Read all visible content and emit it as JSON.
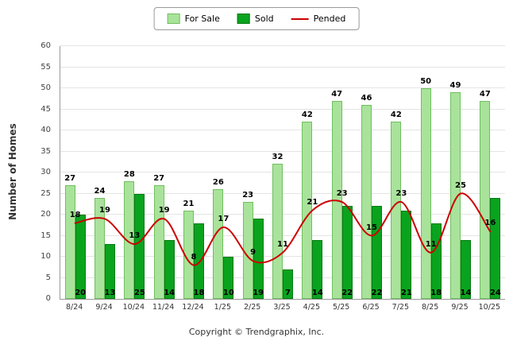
{
  "footer": {
    "copyright": "Copyright © Trendgraphix, Inc."
  },
  "chart_data": {
    "type": "bar",
    "title": "",
    "xlabel": "",
    "ylabel": "Number of Homes",
    "ylim": [
      0,
      60
    ],
    "yticks": [
      0,
      5,
      10,
      15,
      20,
      25,
      30,
      35,
      40,
      45,
      50,
      55,
      60
    ],
    "grid": true,
    "legend_position": "top",
    "categories": [
      "8/24",
      "9/24",
      "10/24",
      "11/24",
      "12/24",
      "1/25",
      "2/25",
      "3/25",
      "4/25",
      "5/25",
      "6/25",
      "7/25",
      "8/25",
      "9/25",
      "10/25"
    ],
    "series": [
      {
        "name": "For Sale",
        "type": "bar",
        "color": "#a9e39b",
        "border": "#6fbf5e",
        "values": [
          27,
          24,
          28,
          27,
          21,
          26,
          23,
          32,
          42,
          47,
          46,
          42,
          50,
          49,
          47
        ]
      },
      {
        "name": "Sold",
        "type": "bar",
        "color": "#0aa31e",
        "border": "#067a14",
        "values": [
          20,
          13,
          25,
          14,
          18,
          10,
          19,
          7,
          14,
          22,
          22,
          21,
          18,
          14,
          24
        ]
      },
      {
        "name": "Pended",
        "type": "line",
        "color": "#cc0000",
        "values": [
          18,
          19,
          13,
          19,
          8,
          17,
          9,
          11,
          21,
          23,
          15,
          23,
          11,
          25,
          16
        ]
      }
    ]
  }
}
